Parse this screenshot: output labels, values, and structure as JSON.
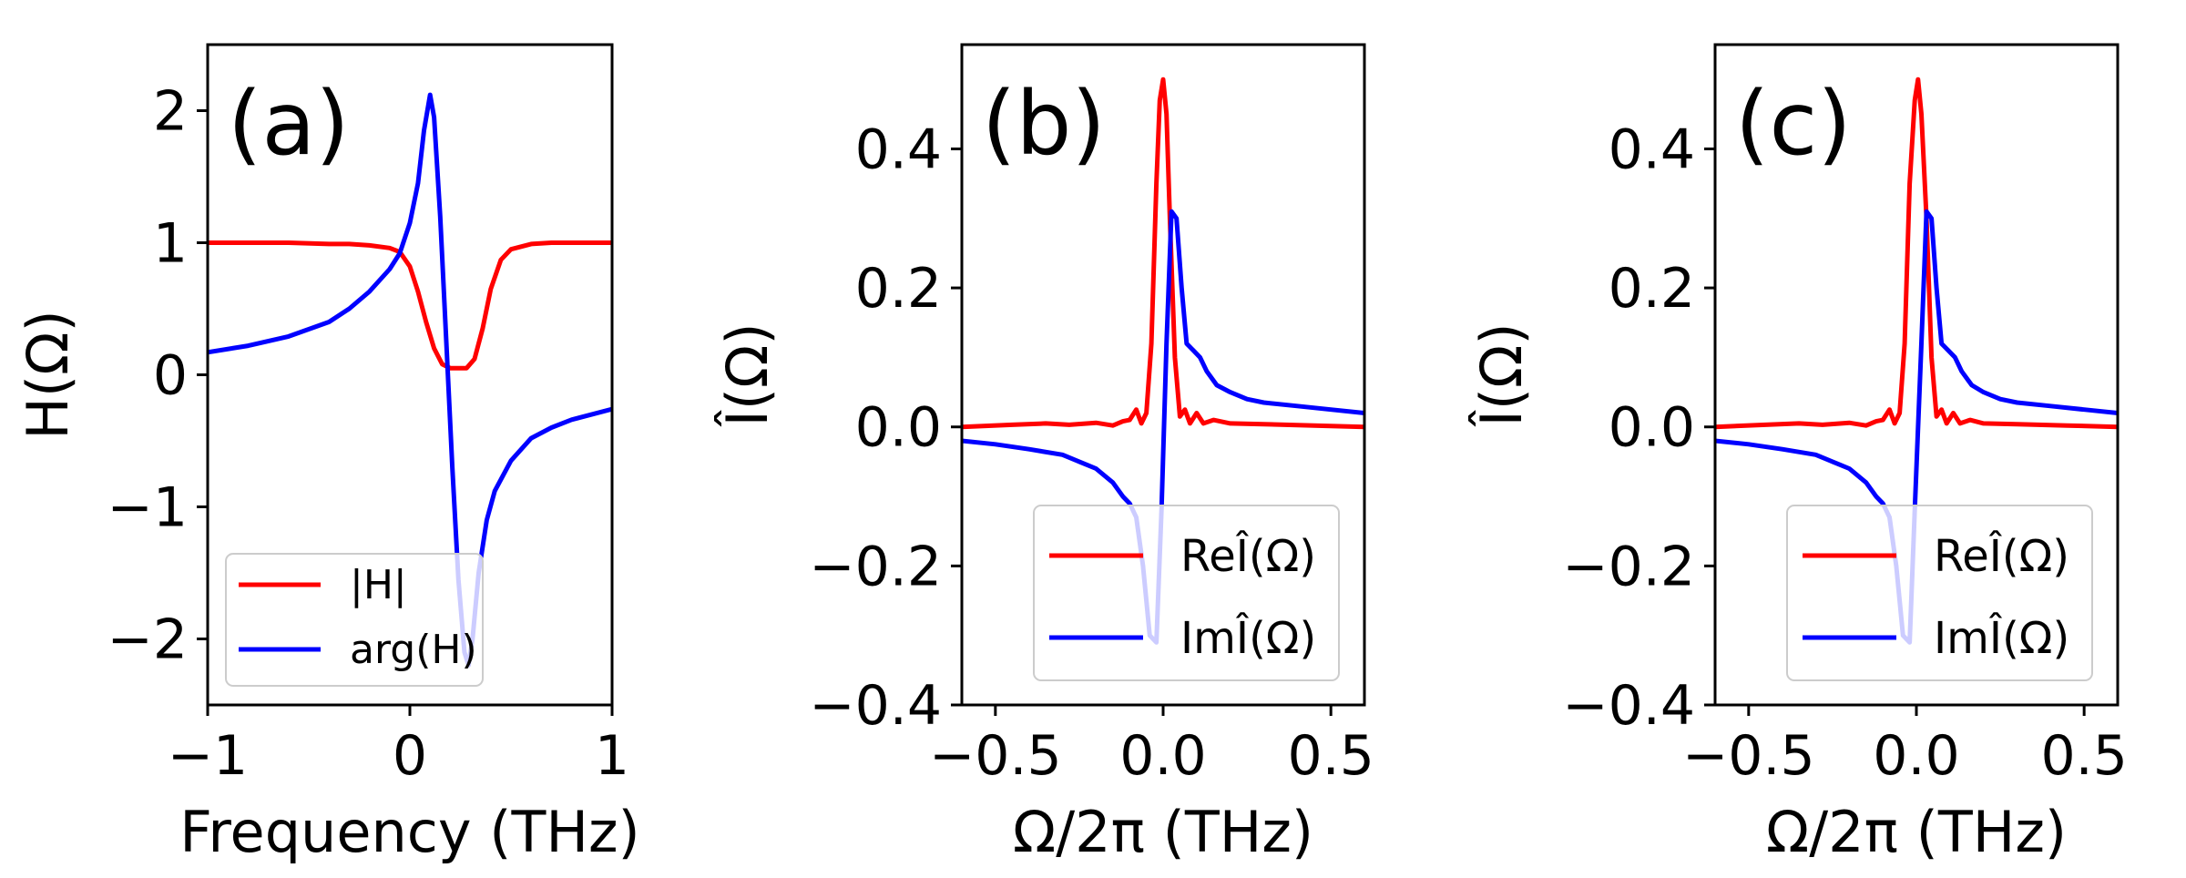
{
  "colors": {
    "red": "#ff0000",
    "blue": "#0000ff",
    "axes": "#000000"
  },
  "chart_data": [
    {
      "type": "line",
      "panel": "(a)",
      "xlabel": "Frequency (THz)",
      "ylabel": "H(Ω)",
      "ylabel_italic": "H",
      "ylabel_rest": "(Ω)",
      "xlim": [
        -1,
        1
      ],
      "ylim": [
        -2.5,
        2.5
      ],
      "xticks": [
        -1,
        0,
        1
      ],
      "xtick_labels": [
        "−1",
        "0",
        "1"
      ],
      "yticks": [
        -2,
        -1,
        0,
        1,
        2
      ],
      "ytick_labels": [
        "−2",
        "−1",
        "0",
        "1",
        "2"
      ],
      "legend_position": "lower-left",
      "series": [
        {
          "name": "|H|",
          "color": "#ff0000",
          "x": [
            -1,
            -0.8,
            -0.6,
            -0.4,
            -0.3,
            -0.2,
            -0.1,
            -0.05,
            0,
            0.04,
            0.08,
            0.12,
            0.16,
            0.2,
            0.24,
            0.28,
            0.32,
            0.36,
            0.4,
            0.45,
            0.5,
            0.6,
            0.7,
            0.8,
            1
          ],
          "y": [
            1,
            1,
            1,
            0.99,
            0.99,
            0.98,
            0.96,
            0.93,
            0.82,
            0.63,
            0.4,
            0.2,
            0.08,
            0.05,
            0.05,
            0.05,
            0.12,
            0.35,
            0.65,
            0.87,
            0.95,
            0.99,
            1,
            1,
            1
          ]
        },
        {
          "name": "arg(H)",
          "color": "#0000ff",
          "x": [
            -1,
            -0.8,
            -0.6,
            -0.4,
            -0.3,
            -0.2,
            -0.1,
            -0.05,
            0,
            0.04,
            0.07,
            0.1,
            0.12,
            0.15,
            0.18,
            0.21,
            0.24,
            0.27,
            0.29,
            0.31,
            0.34,
            0.38,
            0.42,
            0.5,
            0.6,
            0.7,
            0.8,
            1
          ],
          "y": [
            0.17,
            0.22,
            0.29,
            0.4,
            0.5,
            0.63,
            0.8,
            0.92,
            1.15,
            1.45,
            1.85,
            2.12,
            1.95,
            1.2,
            0.25,
            -0.7,
            -1.55,
            -2.1,
            -2.2,
            -2.0,
            -1.5,
            -1.1,
            -0.88,
            -0.65,
            -0.48,
            -0.4,
            -0.34,
            -0.26
          ]
        }
      ]
    },
    {
      "type": "line",
      "panel": "(b)",
      "xlabel": "Ω/2π (THz)",
      "ylabel": "Î(Ω)",
      "xlim": [
        -0.6,
        0.6
      ],
      "ylim": [
        -0.4,
        0.55
      ],
      "xticks": [
        -0.5,
        0,
        0.5
      ],
      "xtick_labels": [
        "−0.5",
        "0.0",
        "0.5"
      ],
      "yticks": [
        -0.4,
        -0.2,
        0,
        0.2,
        0.4
      ],
      "ytick_labels": [
        "−0.4",
        "−0.2",
        "0.0",
        "0.2",
        "0.4"
      ],
      "legend_position": "lower-right",
      "series": [
        {
          "name": "ReÎ(Ω)",
          "color": "#ff0000",
          "x": [
            -0.6,
            -0.45,
            -0.35,
            -0.28,
            -0.2,
            -0.15,
            -0.12,
            -0.1,
            -0.08,
            -0.065,
            -0.05,
            -0.035,
            -0.02,
            -0.01,
            0,
            0.01,
            0.02,
            0.035,
            0.05,
            0.065,
            0.08,
            0.1,
            0.12,
            0.15,
            0.2,
            0.3,
            0.45,
            0.6
          ],
          "y": [
            0,
            0.003,
            0.005,
            0.003,
            0.006,
            0.002,
            0.008,
            0.01,
            0.025,
            0.005,
            0.02,
            0.12,
            0.35,
            0.47,
            0.5,
            0.45,
            0.3,
            0.1,
            0.015,
            0.025,
            0.005,
            0.02,
            0.005,
            0.01,
            0.005,
            0.004,
            0.002,
            0
          ]
        },
        {
          "name": "ImÎ(Ω)",
          "color": "#0000ff",
          "x": [
            -0.6,
            -0.5,
            -0.4,
            -0.3,
            -0.25,
            -0.2,
            -0.15,
            -0.12,
            -0.1,
            -0.08,
            -0.06,
            -0.04,
            -0.02,
            -0.005,
            0.01,
            0.025,
            0.04,
            0.055,
            0.07,
            0.09,
            0.11,
            0.13,
            0.16,
            0.2,
            0.25,
            0.3,
            0.4,
            0.5,
            0.6
          ],
          "y": [
            -0.02,
            -0.025,
            -0.032,
            -0.04,
            -0.05,
            -0.06,
            -0.08,
            -0.1,
            -0.11,
            -0.13,
            -0.2,
            -0.3,
            -0.31,
            -0.12,
            0.12,
            0.31,
            0.3,
            0.2,
            0.12,
            0.11,
            0.1,
            0.08,
            0.06,
            0.05,
            0.04,
            0.035,
            0.03,
            0.025,
            0.02
          ]
        }
      ]
    },
    {
      "type": "line",
      "panel": "(c)",
      "xlabel": "Ω/2π (THz)",
      "ylabel": "Î(Ω)",
      "xlim": [
        -0.6,
        0.6
      ],
      "ylim": [
        -0.4,
        0.55
      ],
      "xticks": [
        -0.5,
        0,
        0.5
      ],
      "xtick_labels": [
        "−0.5",
        "0.0",
        "0.5"
      ],
      "yticks": [
        -0.4,
        -0.2,
        0,
        0.2,
        0.4
      ],
      "ytick_labels": [
        "−0.4",
        "−0.2",
        "0.0",
        "0.2",
        "0.4"
      ],
      "legend_position": "lower-right",
      "series": [
        {
          "name": "ReÎ(Ω)",
          "color": "#ff0000",
          "x": [
            -0.6,
            -0.45,
            -0.35,
            -0.28,
            -0.2,
            -0.15,
            -0.12,
            -0.1,
            -0.08,
            -0.065,
            -0.05,
            -0.035,
            -0.02,
            -0.005,
            0.005,
            0.015,
            0.03,
            0.045,
            0.06,
            0.075,
            0.09,
            0.11,
            0.13,
            0.16,
            0.2,
            0.3,
            0.45,
            0.6
          ],
          "y": [
            0,
            0.003,
            0.005,
            0.003,
            0.006,
            0.002,
            0.008,
            0.01,
            0.025,
            0.005,
            0.02,
            0.12,
            0.35,
            0.47,
            0.5,
            0.45,
            0.3,
            0.1,
            0.015,
            0.025,
            0.005,
            0.02,
            0.005,
            0.01,
            0.005,
            0.004,
            0.002,
            0
          ]
        },
        {
          "name": "ImÎ(Ω)",
          "color": "#0000ff",
          "x": [
            -0.6,
            -0.5,
            -0.4,
            -0.3,
            -0.25,
            -0.2,
            -0.15,
            -0.12,
            -0.1,
            -0.08,
            -0.06,
            -0.04,
            -0.02,
            -0.005,
            0.015,
            0.03,
            0.045,
            0.06,
            0.075,
            0.095,
            0.115,
            0.135,
            0.165,
            0.2,
            0.25,
            0.3,
            0.4,
            0.5,
            0.6
          ],
          "y": [
            -0.02,
            -0.025,
            -0.032,
            -0.04,
            -0.05,
            -0.06,
            -0.08,
            -0.1,
            -0.11,
            -0.13,
            -0.2,
            -0.3,
            -0.31,
            -0.12,
            0.12,
            0.31,
            0.3,
            0.2,
            0.12,
            0.11,
            0.1,
            0.08,
            0.06,
            0.05,
            0.04,
            0.035,
            0.03,
            0.025,
            0.02
          ]
        }
      ]
    }
  ]
}
